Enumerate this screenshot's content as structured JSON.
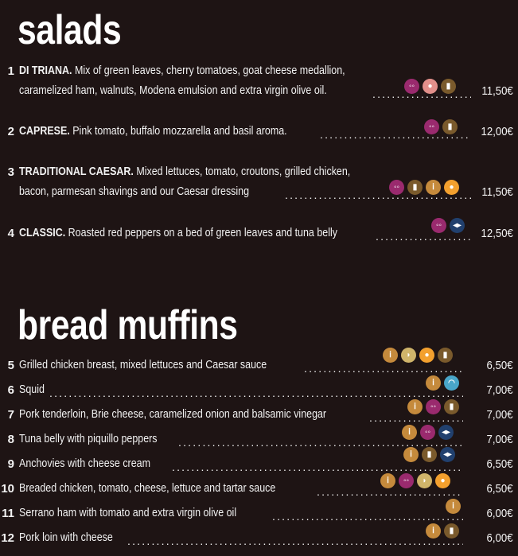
{
  "salads": {
    "title": "salads",
    "items": [
      {
        "num": "1",
        "name": "DI TRIANA.",
        "desc1": " Mix of green leaves, cherry tomatoes, goat cheese medallion,",
        "desc2": "caramelized ham, walnuts, Modena emulsion and extra virgin olive oil.",
        "price": "11,50€",
        "icons": [
          "egg",
          "nut",
          "milk"
        ]
      },
      {
        "num": "2",
        "name": "CAPRESE.",
        "desc1": " Pink tomato, buffalo mozzarella and basil aroma.",
        "price": "12,00€",
        "icons": [
          "egg",
          "milk"
        ]
      },
      {
        "num": "3",
        "name": "TRADITIONAL CAESAR.",
        "desc1": " Mixed lettuces, tomato, croutons, grilled chicken,",
        "desc2": "bacon, parmesan shavings and our Caesar dressing",
        "price": "11,50€",
        "icons": [
          "egg",
          "milk",
          "gluten",
          "soy"
        ]
      },
      {
        "num": "4",
        "name": "CLASSIC.",
        "desc1": " Roasted red peppers on a bed of green leaves and tuna belly",
        "price": "12,50€",
        "icons": [
          "egg",
          "fish"
        ]
      }
    ]
  },
  "muffins": {
    "title": "bread muffins",
    "items": [
      {
        "num": "5",
        "desc": "Grilled chicken breast, mixed lettuces and Caesar sauce",
        "price": "6,50€",
        "icons": [
          "gluten",
          "mustard",
          "soy",
          "milk"
        ]
      },
      {
        "num": "6",
        "desc": "Squid",
        "price": "7,00€",
        "icons": [
          "gluten",
          "shell"
        ]
      },
      {
        "num": "7",
        "desc": "Pork tenderloin, Brie cheese, caramelized onion and balsamic vinegar",
        "price": "7,00€",
        "icons": [
          "gluten",
          "egg",
          "milk"
        ]
      },
      {
        "num": "8",
        "desc": "Tuna belly with piquillo peppers",
        "price": "7,00€",
        "icons": [
          "gluten",
          "egg",
          "fish"
        ]
      },
      {
        "num": "9",
        "desc": "Anchovies with cheese cream",
        "price": "6,50€",
        "icons": [
          "gluten",
          "milk",
          "fish"
        ]
      },
      {
        "num": "10",
        "desc": "Breaded chicken, tomato, cheese, lettuce and tartar sauce",
        "price": "6,50€",
        "icons": [
          "gluten",
          "egg",
          "mustard",
          "soy"
        ]
      },
      {
        "num": "11",
        "desc": "Serrano ham with tomato and extra virgin olive oil",
        "price": "6,00€",
        "icons": [
          "gluten"
        ]
      },
      {
        "num": "12",
        "desc": "Pork loin with cheese",
        "price": "6,00€",
        "icons": [
          "gluten",
          "milk"
        ]
      }
    ]
  },
  "allergen_glyphs": {
    "egg": "◦◦",
    "nut": "●",
    "milk": "▮",
    "gluten": "ⅰ",
    "fish": "◂▸",
    "mustard": "◗",
    "soy": "●",
    "shell": "◠"
  },
  "colors": {
    "background": "#1e1414",
    "text": "#f2f2f2"
  }
}
